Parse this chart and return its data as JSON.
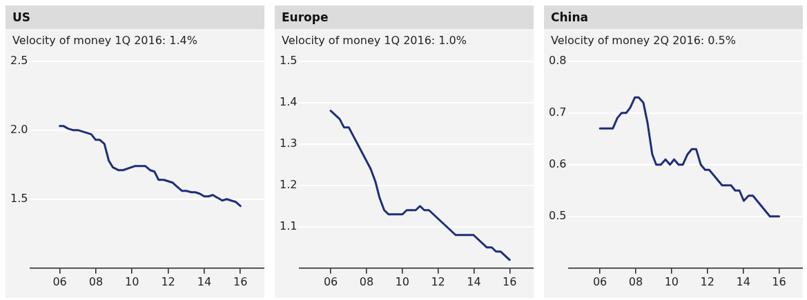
{
  "chart_data": [
    {
      "type": "line",
      "title": "US",
      "subtitle": "Velocity of money 1Q 2016: 1.4%",
      "color": "#1f2d7a",
      "marker": "none",
      "grid": "y",
      "x": [
        6.0,
        6.2,
        6.47,
        6.73,
        7.0,
        7.74,
        7.98,
        8.21,
        8.47,
        8.71,
        8.94,
        9.24,
        9.5,
        10.18,
        10.73,
        11.0,
        11.24,
        11.47,
        11.76,
        12.24,
        12.76,
        13.0,
        13.29,
        13.5,
        13.74,
        14.0,
        14.24,
        14.47,
        15.0,
        15.24,
        15.74,
        16.0
      ],
      "values": [
        2.03,
        2.03,
        2.01,
        2.0,
        2.0,
        1.97,
        1.93,
        1.93,
        1.9,
        1.78,
        1.73,
        1.71,
        1.71,
        1.74,
        1.74,
        1.71,
        1.7,
        1.64,
        1.64,
        1.62,
        1.56,
        1.56,
        1.55,
        1.55,
        1.54,
        1.52,
        1.52,
        1.53,
        1.49,
        1.5,
        1.48,
        1.45
      ],
      "xlim": [
        4.35,
        17.33
      ],
      "xticks": [
        {
          "value": 6,
          "label": "06"
        },
        {
          "value": 8,
          "label": "08"
        },
        {
          "value": 10,
          "label": "10"
        },
        {
          "value": 12,
          "label": "12"
        },
        {
          "value": 14,
          "label": "14"
        },
        {
          "value": 16,
          "label": "16"
        }
      ],
      "ylim": [
        1.0,
        2.5
      ],
      "yticks": [
        1.5,
        {
          "value": 2,
          "label": "2.0"
        },
        2.5
      ]
    },
    {
      "type": "line",
      "title": "Europe",
      "subtitle": "Velocity of money 1Q 2016: 1.0%",
      "color": "#1f2d7a",
      "marker": "none",
      "grid": "y",
      "x": [
        6.0,
        6.5,
        6.74,
        7.01,
        8.23,
        8.49,
        8.73,
        8.99,
        9.23,
        10.01,
        10.25,
        10.75,
        10.99,
        11.23,
        11.49,
        12.98,
        13.98,
        14.73,
        15.0,
        15.24,
        15.5,
        16.0
      ],
      "values": [
        1.38,
        1.36,
        1.34,
        1.34,
        1.24,
        1.21,
        1.17,
        1.14,
        1.13,
        1.13,
        1.14,
        1.14,
        1.15,
        1.14,
        1.14,
        1.08,
        1.08,
        1.05,
        1.05,
        1.04,
        1.04,
        1.02
      ],
      "xlim": [
        4.24,
        17.34
      ],
      "xticks": [
        {
          "value": 6,
          "label": "06"
        },
        {
          "value": 8,
          "label": "08"
        },
        {
          "value": 10,
          "label": "10"
        },
        {
          "value": 12,
          "label": "12"
        },
        {
          "value": 14,
          "label": "14"
        },
        {
          "value": 16,
          "label": "16"
        }
      ],
      "ylim": [
        1.0,
        1.5
      ],
      "yticks": [
        1.1,
        1.2,
        1.3,
        1.4,
        1.5
      ]
    },
    {
      "type": "line",
      "title": "China",
      "subtitle": "Velocity of money 2Q 2016: 0.5%",
      "color": "#1f2d7a",
      "marker": "none",
      "grid": "y",
      "x": [
        6.0,
        6.72,
        6.97,
        7.21,
        7.47,
        7.69,
        7.95,
        8.16,
        8.42,
        8.66,
        8.92,
        9.14,
        9.4,
        9.66,
        9.91,
        10.14,
        10.39,
        10.63,
        10.89,
        11.13,
        11.37,
        11.63,
        11.87,
        12.1,
        12.82,
        13.32,
        13.55,
        13.79,
        14.03,
        14.3,
        14.54,
        15.49,
        16.0
      ],
      "values": [
        0.67,
        0.67,
        0.69,
        0.7,
        0.7,
        0.71,
        0.73,
        0.73,
        0.72,
        0.68,
        0.62,
        0.6,
        0.6,
        0.61,
        0.6,
        0.61,
        0.6,
        0.6,
        0.62,
        0.63,
        0.63,
        0.6,
        0.59,
        0.59,
        0.56,
        0.56,
        0.55,
        0.55,
        0.53,
        0.54,
        0.54,
        0.5,
        0.5
      ],
      "xlim": [
        4.24,
        17.33
      ],
      "xticks": [
        {
          "value": 6,
          "label": "06"
        },
        {
          "value": 8,
          "label": "08"
        },
        {
          "value": 10,
          "label": "10"
        },
        {
          "value": 12,
          "label": "12"
        },
        {
          "value": 14,
          "label": "14"
        },
        {
          "value": 16,
          "label": "16"
        }
      ],
      "ylim": [
        0.4,
        0.8
      ],
      "yticks": [
        0.5,
        0.6,
        0.7,
        0.8
      ]
    }
  ]
}
